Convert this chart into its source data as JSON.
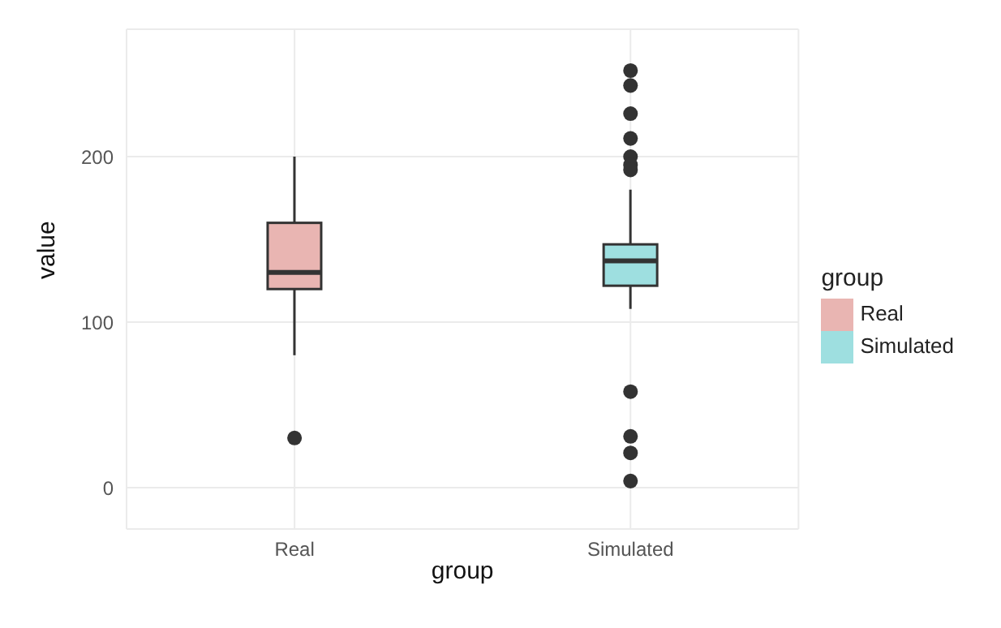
{
  "chart_data": {
    "type": "box",
    "xlabel": "group",
    "ylabel": "value",
    "legend_title": "group",
    "categories": [
      "Real",
      "Simulated"
    ],
    "series": [
      {
        "name": "Real",
        "color": "#e9b5b2",
        "boxes": [
          {
            "low": 80,
            "q1": 120,
            "median": 130,
            "q3": 160,
            "high": 200,
            "outliers": [
              30
            ]
          },
          null
        ]
      },
      {
        "name": "Simulated",
        "color": "#9edfe0",
        "boxes": [
          null,
          {
            "low": 108,
            "q1": 122,
            "median": 137,
            "q3": 147,
            "high": 180,
            "outliers": [
              252,
              243,
              226,
              211,
              200,
              195,
              192,
              58,
              31,
              21,
              4
            ]
          }
        ]
      }
    ],
    "ylim": [
      -25,
      277
    ],
    "yticks": [
      0,
      100,
      200
    ],
    "grid": true,
    "legend": "right"
  }
}
